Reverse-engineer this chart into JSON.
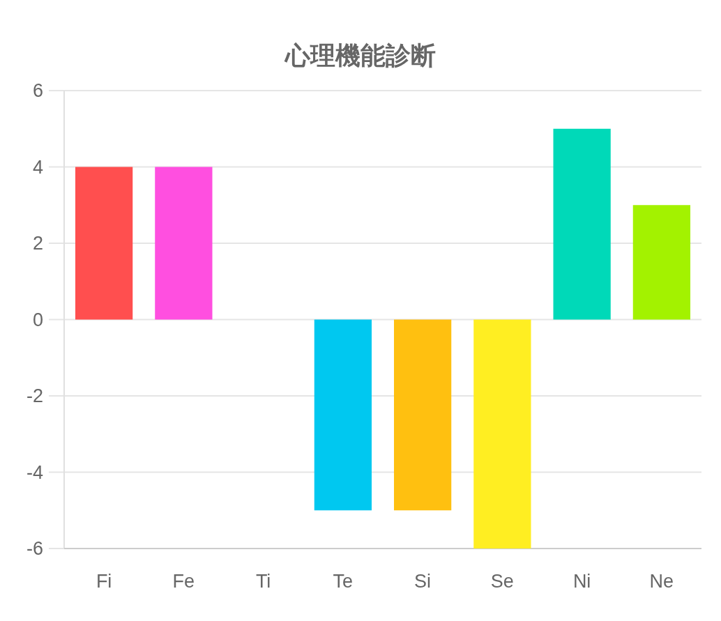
{
  "chart_data": {
    "type": "bar",
    "title": "心理機能診断",
    "categories": [
      "Fi",
      "Fe",
      "Ti",
      "Te",
      "Si",
      "Se",
      "Ni",
      "Ne"
    ],
    "values": [
      4,
      4,
      0,
      -5,
      -5,
      -6,
      5,
      3
    ],
    "colors": [
      "#ff4f4f",
      "#ff4fe0",
      "#9966ff",
      "#00c8f0",
      "#ffc010",
      "#ffee22",
      "#00d9b8",
      "#a3f200"
    ],
    "ylim": [
      -6,
      6
    ],
    "yticks": [
      -6,
      -4,
      -2,
      0,
      2,
      4,
      6
    ],
    "grid": "y"
  }
}
